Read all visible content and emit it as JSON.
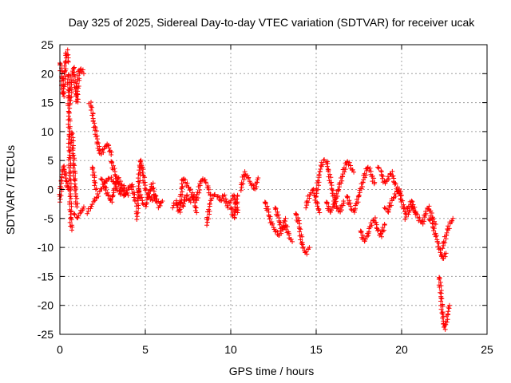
{
  "chart_data": {
    "type": "scatter",
    "title": "Day 325 of 2025, Sidereal Day-to-day VTEC variation (SDTVAR) for receiver ucak",
    "xlabel": "GPS time / hours",
    "ylabel": "SDTVAR / TECUs",
    "xlim": [
      0,
      25
    ],
    "ylim": [
      -25,
      25
    ],
    "xticks": [
      0,
      5,
      10,
      15,
      20,
      25
    ],
    "yticks": [
      -25,
      -20,
      -15,
      -10,
      -5,
      0,
      5,
      10,
      15,
      20,
      25
    ],
    "grid": true,
    "marker": "+",
    "color": "#ff0000",
    "series": [
      {
        "name": "SDTVAR",
        "segments": [
          {
            "x": [
              0.0,
              0.1,
              0.2,
              0.3,
              0.4,
              0.5
            ],
            "y": [
              22,
              20,
              16,
              21,
              24,
              22
            ]
          },
          {
            "x": [
              0.0,
              0.1,
              0.2,
              0.3,
              0.4,
              0.5
            ],
            "y": [
              -2,
              2,
              4,
              3,
              1,
              0
            ]
          },
          {
            "x": [
              0.5,
              0.55,
              0.6,
              0.65,
              0.7
            ],
            "y": [
              20,
              10,
              0,
              -6,
              -7
            ]
          },
          {
            "x": [
              0.6,
              0.7,
              0.8,
              0.9,
              1.0,
              1.1,
              1.2,
              1.4
            ],
            "y": [
              15,
              20,
              21,
              18,
              15,
              20,
              21,
              20
            ]
          },
          {
            "x": [
              0.7,
              0.8,
              0.9,
              1.0
            ],
            "y": [
              10,
              5,
              0,
              -3
            ]
          },
          {
            "x": [
              0.8,
              1.0,
              1.2,
              1.4
            ],
            "y": [
              -4,
              -5,
              -4,
              -3
            ]
          },
          {
            "x": [
              1.6,
              1.8,
              2.0,
              2.2,
              2.4,
              2.6,
              2.8,
              3.0,
              3.2,
              3.4,
              3.6,
              3.8
            ],
            "y": [
              -4,
              -3,
              -2,
              -1,
              0,
              1,
              2,
              2,
              1,
              0,
              -1,
              -1
            ]
          },
          {
            "x": [
              1.7,
              1.8,
              1.9,
              2.0,
              2.1,
              2.2,
              2.3,
              2.4,
              2.6,
              2.8,
              3.0
            ],
            "y": [
              15,
              15,
              13,
              11,
              10,
              8,
              7,
              6,
              7,
              8,
              6
            ]
          },
          {
            "x": [
              1.9,
              2.0,
              2.1
            ],
            "y": [
              4,
              2,
              0
            ]
          },
          {
            "x": [
              2.4,
              2.6,
              2.8,
              3.0,
              3.2,
              3.4,
              3.6,
              3.8,
              4.0
            ],
            "y": [
              2,
              1,
              -1,
              -2,
              0,
              2,
              1,
              0,
              -1
            ]
          },
          {
            "x": [
              3.0,
              3.2,
              3.4,
              3.6,
              3.8,
              4.0,
              4.2,
              4.4
            ],
            "y": [
              5,
              3,
              1,
              0,
              -1,
              0,
              1,
              -2
            ]
          },
          {
            "x": [
              4.5,
              4.6,
              4.7,
              4.8,
              4.9,
              5.0,
              5.2,
              5.4,
              5.6,
              5.8,
              6.0
            ],
            "y": [
              -5,
              0,
              5,
              4,
              2,
              0,
              -1,
              -2,
              -1,
              -3,
              -2
            ]
          },
          {
            "x": [
              4.6,
              4.8,
              5.0,
              5.2,
              5.4,
              5.6
            ],
            "y": [
              0,
              -2,
              -3,
              -1,
              1,
              -2
            ]
          },
          {
            "x": [
              6.6,
              6.8,
              7.0,
              7.2,
              7.4,
              7.6,
              7.8,
              8.0,
              8.2,
              8.4,
              8.6,
              8.8
            ],
            "y": [
              -3,
              -2,
              -4,
              2,
              1,
              0,
              -1,
              -2,
              1,
              2,
              1,
              -1
            ]
          },
          {
            "x": [
              7.0,
              7.2,
              7.4,
              7.6,
              7.8,
              8.0
            ],
            "y": [
              -2,
              -3,
              -1,
              -2,
              -1,
              -4
            ]
          },
          {
            "x": [
              8.6,
              8.8,
              9.0,
              9.2,
              9.4,
              9.6,
              9.8,
              10.0,
              10.2,
              10.4
            ],
            "y": [
              -6,
              -2,
              -1,
              -1,
              -2,
              -1,
              -3,
              -2,
              -1,
              -4
            ]
          },
          {
            "x": [
              10.0,
              10.2,
              10.4
            ],
            "y": [
              -3,
              -5,
              -1
            ]
          },
          {
            "x": [
              10.6,
              10.8,
              11.0,
              11.2,
              11.4,
              11.6
            ],
            "y": [
              0,
              3,
              2,
              1,
              0,
              2
            ]
          },
          {
            "x": [
              12.0,
              12.2,
              12.4,
              12.6,
              12.8,
              13.0,
              13.2,
              13.4,
              13.6
            ],
            "y": [
              -2,
              -4,
              -6,
              -7,
              -8,
              -7,
              -6,
              -8,
              -9
            ]
          },
          {
            "x": [
              12.6,
              12.8,
              13.0,
              13.2
            ],
            "y": [
              -3,
              -5,
              -7,
              -5
            ]
          },
          {
            "x": [
              13.8,
              14.0,
              14.2,
              14.4,
              14.6
            ],
            "y": [
              -4,
              -6,
              -10,
              -11,
              -10
            ]
          },
          {
            "x": [
              14.4,
              14.6,
              14.8,
              15.0,
              15.2
            ],
            "y": [
              -3,
              -1,
              0,
              -2,
              -4
            ]
          },
          {
            "x": [
              15.0,
              15.2,
              15.4,
              15.6,
              15.8,
              16.0,
              16.2,
              16.4,
              16.6
            ],
            "y": [
              -1,
              3,
              5,
              5,
              2,
              -1,
              -3,
              -4,
              -2
            ]
          },
          {
            "x": [
              15.6,
              15.8,
              16.0,
              16.2,
              16.4,
              16.6,
              16.8,
              17.0,
              17.2
            ],
            "y": [
              -2,
              -4,
              -3,
              -1,
              1,
              3,
              5,
              4,
              3
            ]
          },
          {
            "x": [
              16.8,
              17.0,
              17.2,
              17.4,
              17.6,
              17.8,
              18.0,
              18.2,
              18.4
            ],
            "y": [
              -1,
              -3,
              -4,
              -2,
              0,
              2,
              4,
              3,
              1
            ]
          },
          {
            "x": [
              17.6,
              17.8,
              18.0,
              18.2,
              18.4,
              18.6,
              18.8,
              19.0
            ],
            "y": [
              -7,
              -9,
              -8,
              -6,
              -5,
              -7,
              -8,
              -6
            ]
          },
          {
            "x": [
              18.6,
              18.8,
              19.0,
              19.2,
              19.4,
              19.6,
              19.8,
              20.0
            ],
            "y": [
              4,
              3,
              1,
              2,
              3,
              1,
              0,
              -1
            ]
          },
          {
            "x": [
              19.0,
              19.2,
              19.4,
              19.6,
              19.8,
              20.0,
              20.2,
              20.4,
              20.6,
              20.8
            ],
            "y": [
              -3,
              -4,
              -2,
              -1,
              0,
              -2,
              -4,
              -3,
              -2,
              -4
            ]
          },
          {
            "x": [
              20.2,
              20.4,
              20.6,
              20.8,
              21.0,
              21.2,
              21.4,
              21.6,
              21.8,
              22.0
            ],
            "y": [
              -5,
              -4,
              -3,
              -4,
              -5,
              -6,
              -4,
              -3,
              -5,
              -6
            ]
          },
          {
            "x": [
              21.6,
              21.8,
              22.0,
              22.2,
              22.4,
              22.6
            ],
            "y": [
              -5,
              -6,
              -8,
              -10,
              -12,
              -11
            ]
          },
          {
            "x": [
              22.2,
              22.3,
              22.4,
              22.5,
              22.6,
              22.8
            ],
            "y": [
              -15,
              -18,
              -22,
              -24,
              -23,
              -20
            ]
          },
          {
            "x": [
              22.4,
              22.6,
              22.8,
              23.0
            ],
            "y": [
              -10,
              -8,
              -6,
              -5
            ]
          }
        ]
      }
    ]
  }
}
